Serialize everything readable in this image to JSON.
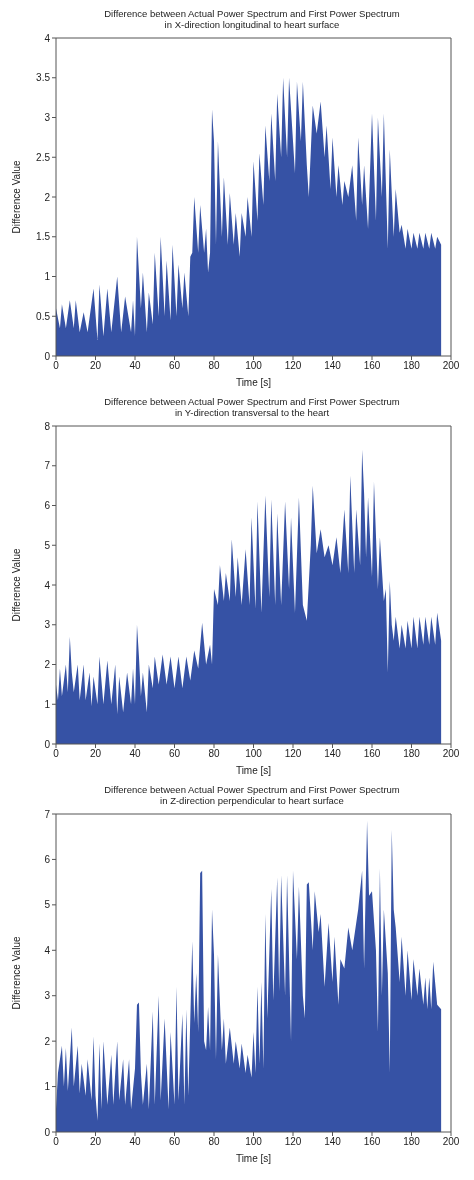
{
  "chart_data": [
    {
      "type": "area",
      "title": "Difference between Actual Power Spectrum and First Power Spectrum",
      "subtitle": "in X-direction longitudinal to heart surface",
      "xlabel": "Time [s]",
      "ylabel": "Difference Value",
      "xlim": [
        0,
        200
      ],
      "xticks": [
        0,
        20,
        40,
        60,
        80,
        100,
        120,
        140,
        160,
        180,
        200
      ],
      "ylim": [
        0,
        4
      ],
      "yticks": [
        0,
        0.5,
        1,
        1.5,
        2,
        2.5,
        3,
        3.5,
        4
      ],
      "series": [
        {
          "color": "#3652a5",
          "x": [
            0,
            2,
            3,
            5,
            7,
            9,
            10,
            12,
            14,
            16,
            19,
            21,
            22,
            24,
            26,
            28,
            31,
            33,
            35,
            38,
            39,
            40,
            41,
            43,
            44,
            46,
            47,
            49,
            50,
            52,
            53,
            55,
            56,
            58,
            59,
            61,
            62,
            64,
            65,
            67,
            68,
            69,
            70,
            72,
            73,
            75,
            76,
            77,
            78,
            79,
            80,
            81,
            82,
            84,
            85,
            87,
            88,
            90,
            91,
            93,
            94,
            96,
            97,
            99,
            100,
            102,
            103,
            105,
            106,
            108,
            109,
            111,
            112,
            114,
            115,
            117,
            118,
            120,
            121,
            122,
            124,
            125,
            127,
            128,
            130,
            132,
            134,
            136,
            137,
            139,
            140,
            142,
            143,
            145,
            146,
            148,
            150,
            152,
            153,
            155,
            156,
            158,
            160,
            162,
            163,
            165,
            166,
            168,
            169,
            171,
            172,
            174,
            175,
            177,
            178,
            180,
            181,
            183,
            184,
            186,
            187,
            189,
            190,
            192,
            193,
            195
          ],
          "values": [
            0.6,
            0.35,
            0.65,
            0.35,
            0.7,
            0.35,
            0.7,
            0.3,
            0.55,
            0.3,
            0.85,
            0.2,
            0.9,
            0.25,
            0.85,
            0.3,
            1.0,
            0.3,
            0.75,
            0.3,
            0.7,
            0.25,
            1.5,
            0.6,
            1.05,
            0.3,
            0.8,
            0.4,
            1.3,
            0.5,
            1.5,
            0.5,
            1.2,
            0.45,
            1.4,
            0.5,
            1.15,
            0.6,
            1.05,
            0.5,
            1.25,
            1.3,
            2.0,
            1.3,
            1.9,
            1.3,
            1.6,
            1.05,
            1.3,
            3.1,
            2.7,
            1.4,
            2.7,
            1.5,
            2.25,
            1.4,
            2.05,
            1.4,
            1.8,
            1.25,
            1.8,
            1.5,
            2.0,
            1.5,
            2.45,
            1.7,
            2.55,
            1.9,
            2.9,
            2.2,
            3.05,
            2.2,
            3.3,
            2.5,
            3.5,
            2.5,
            3.5,
            2.7,
            2.3,
            3.45,
            2.7,
            3.45,
            2.4,
            2.0,
            3.15,
            2.8,
            3.2,
            2.5,
            2.9,
            2.1,
            2.75,
            2.0,
            2.4,
            1.9,
            2.2,
            2.0,
            2.4,
            1.7,
            2.75,
            1.9,
            2.4,
            1.6,
            3.05,
            1.7,
            3.0,
            2.0,
            3.05,
            1.35,
            2.6,
            1.5,
            2.1,
            1.55,
            1.65,
            1.35,
            1.6,
            1.35,
            1.55,
            1.35,
            1.55,
            1.35,
            1.55,
            1.35,
            1.55,
            1.35,
            1.5,
            1.4
          ]
        }
      ]
    },
    {
      "type": "area",
      "title": "Difference between Actual Power Spectrum and First Power Spectrum",
      "subtitle": "in Y-direction  transversal to the heart",
      "xlabel": "Time [s]",
      "ylabel": "Difference Value",
      "xlim": [
        0,
        200
      ],
      "xticks": [
        0,
        20,
        40,
        60,
        80,
        100,
        120,
        140,
        160,
        180,
        200
      ],
      "ylim": [
        0,
        8
      ],
      "yticks": [
        0,
        1,
        2,
        3,
        4,
        5,
        6,
        7,
        8
      ],
      "series": [
        {
          "color": "#3652a5",
          "x": [
            0,
            1,
            2,
            3,
            5,
            6,
            7,
            8,
            9,
            11,
            12,
            14,
            15,
            17,
            18,
            19,
            21,
            22,
            24,
            26,
            28,
            30,
            31,
            32,
            34,
            36,
            38,
            39,
            40,
            41,
            42,
            43,
            44,
            46,
            47,
            49,
            50,
            52,
            54,
            56,
            58,
            60,
            62,
            64,
            66,
            68,
            70,
            72,
            74,
            76,
            78,
            79,
            80,
            82,
            83,
            85,
            86,
            88,
            89,
            91,
            92,
            94,
            96,
            98,
            99,
            101,
            102,
            104,
            106,
            108,
            109,
            111,
            112,
            114,
            116,
            118,
            119,
            121,
            123,
            125,
            127,
            129,
            130,
            132,
            134,
            136,
            138,
            140,
            142,
            144,
            146,
            148,
            149,
            151,
            152,
            154,
            155,
            156,
            157,
            158,
            160,
            161,
            163,
            164,
            166,
            167,
            168,
            169,
            170,
            171,
            172,
            174,
            175,
            177,
            178,
            180,
            181,
            183,
            184,
            186,
            187,
            189,
            190,
            192,
            193,
            195
          ],
          "values": [
            1.5,
            1.1,
            1.9,
            1.2,
            2.0,
            1.3,
            2.7,
            1.8,
            1.3,
            2.0,
            1.1,
            2.0,
            1.1,
            1.8,
            0.95,
            1.7,
            1.0,
            2.2,
            1.0,
            2.1,
            1.0,
            2.0,
            0.75,
            1.7,
            0.8,
            1.8,
            1.0,
            1.9,
            1.0,
            3.0,
            2.2,
            1.2,
            1.8,
            0.8,
            2.0,
            1.4,
            2.2,
            1.5,
            2.25,
            1.5,
            2.2,
            1.4,
            2.2,
            1.4,
            2.2,
            1.6,
            2.35,
            1.9,
            3.05,
            2.0,
            2.5,
            2.0,
            3.9,
            3.5,
            4.5,
            3.6,
            4.3,
            3.6,
            5.15,
            3.7,
            4.7,
            3.5,
            4.9,
            3.5,
            5.7,
            3.4,
            6.1,
            3.3,
            6.25,
            3.7,
            6.15,
            3.5,
            5.8,
            3.5,
            6.1,
            3.9,
            5.7,
            3.3,
            6.2,
            3.5,
            3.1,
            5.0,
            6.5,
            4.8,
            5.4,
            4.7,
            5.0,
            4.5,
            5.2,
            4.3,
            5.9,
            4.3,
            6.75,
            4.3,
            5.9,
            4.5,
            7.4,
            6.3,
            4.7,
            6.2,
            4.2,
            6.6,
            3.9,
            5.2,
            3.6,
            3.9,
            1.8,
            4.1,
            3.0,
            2.6,
            3.2,
            2.4,
            3.0,
            2.4,
            3.1,
            2.4,
            3.2,
            2.4,
            3.2,
            2.5,
            3.2,
            2.5,
            3.2,
            2.5,
            3.3,
            2.6
          ]
        }
      ]
    },
    {
      "type": "area",
      "title": "Difference between Actual Power Spectrum and First Power Spectrum",
      "subtitle": "in Z-direction perpendicular to heart surface",
      "xlabel": "Time [s]",
      "ylabel": "Difference Value",
      "xlim": [
        0,
        200
      ],
      "xticks": [
        0,
        20,
        40,
        60,
        80,
        100,
        120,
        140,
        160,
        180,
        200
      ],
      "ylim": [
        0,
        7
      ],
      "yticks": [
        0,
        1,
        2,
        3,
        4,
        5,
        6,
        7
      ],
      "series": [
        {
          "color": "#3652a5",
          "x": [
            0,
            1,
            3,
            4,
            5,
            6,
            8,
            9,
            11,
            12,
            13,
            15,
            16,
            18,
            19,
            20,
            21,
            22,
            23,
            24,
            26,
            28,
            29,
            31,
            32,
            34,
            35,
            37,
            38,
            40,
            41,
            42,
            43,
            44,
            46,
            47,
            49,
            50,
            52,
            53,
            55,
            57,
            58,
            60,
            61,
            62,
            64,
            65,
            66,
            67,
            69,
            70,
            71,
            72,
            73,
            74,
            75,
            76,
            77,
            78,
            79,
            80,
            81,
            82,
            84,
            85,
            86,
            88,
            90,
            91,
            93,
            94,
            96,
            97,
            99,
            100,
            101,
            102,
            103,
            104,
            105,
            106,
            107,
            109,
            110,
            112,
            113,
            114,
            116,
            117,
            119,
            120,
            122,
            123,
            125,
            126,
            127,
            128,
            130,
            131,
            133,
            134,
            136,
            138,
            140,
            141,
            143,
            144,
            146,
            148,
            150,
            153,
            155,
            156,
            157.5,
            158.5,
            160,
            162,
            163,
            164,
            165,
            166,
            168,
            169,
            170,
            171,
            172,
            174,
            175,
            177,
            178,
            180,
            181,
            183,
            184,
            186,
            187,
            188,
            189,
            190,
            191,
            193,
            195
          ],
          "values": [
            0.5,
            1.3,
            1.9,
            1.0,
            1.85,
            0.9,
            2.3,
            1.0,
            1.9,
            0.85,
            1.5,
            0.8,
            1.6,
            0.7,
            2.1,
            0.8,
            0.25,
            1.95,
            0.5,
            2.0,
            0.6,
            1.7,
            0.6,
            2.0,
            0.7,
            1.6,
            0.6,
            1.6,
            0.5,
            1.4,
            2.8,
            2.85,
            1.3,
            0.6,
            1.5,
            0.5,
            2.65,
            0.6,
            3.0,
            0.7,
            2.5,
            0.5,
            2.2,
            0.6,
            3.2,
            0.7,
            2.6,
            0.6,
            2.7,
            0.8,
            4.2,
            2.4,
            3.5,
            2.2,
            5.7,
            5.75,
            2.0,
            1.8,
            2.75,
            1.8,
            4.9,
            3.9,
            1.6,
            3.9,
            1.8,
            2.5,
            1.5,
            2.3,
            1.5,
            2.0,
            1.4,
            1.95,
            1.3,
            1.7,
            1.2,
            2.2,
            1.3,
            3.2,
            1.5,
            3.3,
            1.4,
            4.8,
            2.5,
            5.35,
            2.9,
            5.6,
            3.1,
            5.65,
            3.0,
            5.65,
            2.0,
            5.75,
            3.8,
            5.4,
            3.0,
            2.5,
            5.45,
            5.5,
            4.0,
            5.3,
            4.4,
            4.8,
            3.2,
            4.6,
            3.3,
            4.3,
            2.8,
            3.8,
            3.6,
            4.5,
            4.0,
            4.9,
            5.75,
            3.6,
            6.85,
            5.2,
            5.3,
            4.0,
            2.2,
            5.8,
            3.0,
            4.9,
            3.5,
            1.3,
            6.65,
            4.9,
            4.5,
            3.3,
            4.3,
            3.0,
            4.0,
            2.9,
            3.8,
            3.0,
            3.6,
            2.8,
            3.4,
            2.7,
            3.4,
            2.7,
            3.75,
            2.8,
            2.7
          ]
        }
      ]
    }
  ]
}
